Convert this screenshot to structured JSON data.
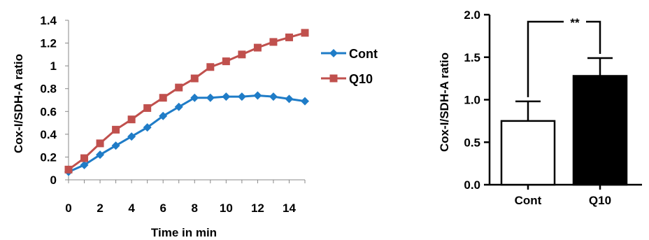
{
  "chart_data": [
    {
      "type": "line",
      "xlabel": "Time in min",
      "ylabel": "Cox-I/SDH-A ratio",
      "xlim": [
        0,
        15
      ],
      "ylim": [
        0,
        1.4
      ],
      "x_ticks": [
        "0",
        "2",
        "4",
        "6",
        "8",
        "10",
        "12",
        "14"
      ],
      "y_ticks": [
        "0",
        "0.2",
        "0.4",
        "0.6",
        "0.8",
        "1",
        "1.2",
        "1.4"
      ],
      "x": [
        0,
        1,
        2,
        3,
        4,
        5,
        6,
        7,
        8,
        9,
        10,
        11,
        12,
        13,
        14,
        15
      ],
      "legend_position": "right",
      "series": [
        {
          "name": "Cont",
          "color": "#1f7cc7",
          "marker": "diamond",
          "values": [
            0.07,
            0.13,
            0.22,
            0.3,
            0.38,
            0.46,
            0.56,
            0.64,
            0.72,
            0.72,
            0.73,
            0.73,
            0.74,
            0.73,
            0.71,
            0.69
          ]
        },
        {
          "name": "Q10",
          "color": "#c0504d",
          "marker": "square",
          "values": [
            0.09,
            0.19,
            0.32,
            0.44,
            0.53,
            0.63,
            0.72,
            0.81,
            0.89,
            0.99,
            1.04,
            1.1,
            1.16,
            1.21,
            1.25,
            1.29
          ]
        }
      ]
    },
    {
      "type": "bar",
      "ylabel": "Cox-I/SDH-A ratio",
      "ylim": [
        0,
        2.0
      ],
      "y_ticks": [
        "0.0",
        "0.5",
        "1.0",
        "1.5",
        "2.0"
      ],
      "categories": [
        "Cont",
        "Q10"
      ],
      "values": [
        0.75,
        1.28
      ],
      "errors": [
        0.23,
        0.21
      ],
      "bar_colors": [
        "#ffffff",
        "#000000"
      ],
      "significance": "**"
    }
  ]
}
